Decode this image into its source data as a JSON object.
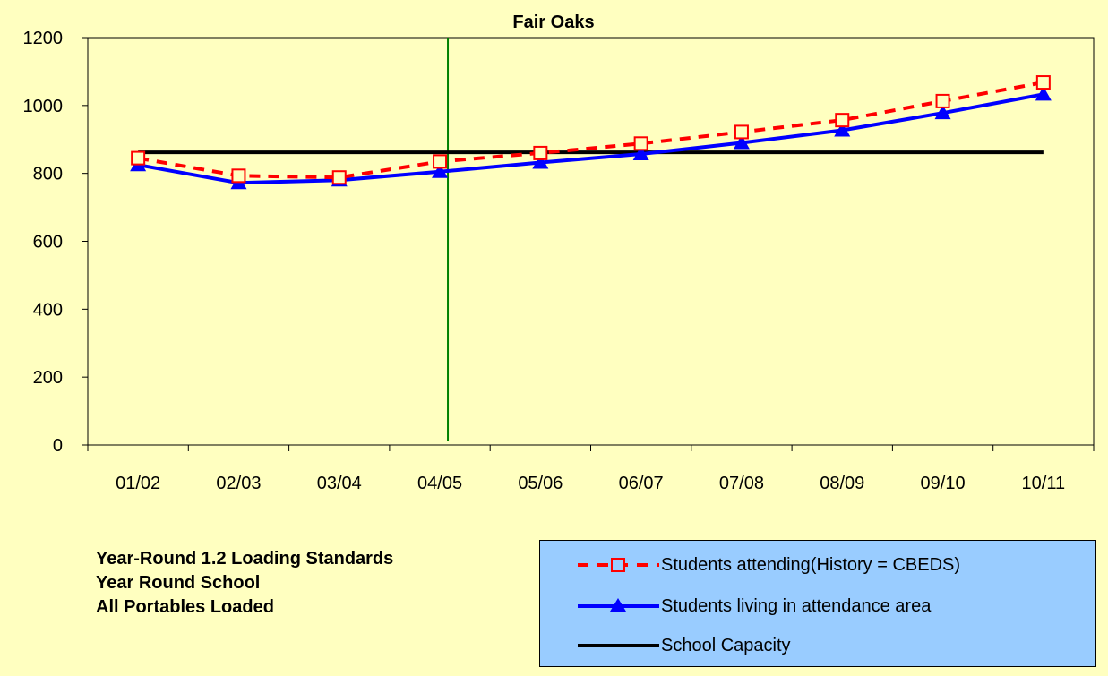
{
  "chart_data": {
    "type": "line",
    "title": "Fair Oaks",
    "xlabel": "",
    "ylabel": "",
    "categories": [
      "01/02",
      "02/03",
      "03/04",
      "04/05",
      "05/06",
      "06/07",
      "07/08",
      "08/09",
      "09/10",
      "10/11"
    ],
    "ylim": [
      0,
      1200
    ],
    "yticks": [
      0,
      200,
      400,
      600,
      800,
      1000,
      1200
    ],
    "divider_after_category": "04/05",
    "series": [
      {
        "name": "Students attending(History = CBEDS)",
        "values": [
          845,
          793,
          788,
          835,
          860,
          888,
          922,
          957,
          1013,
          1068
        ],
        "color": "#ff0000",
        "style": "dashed",
        "marker": "open-square"
      },
      {
        "name": "Students living in attendance area",
        "values": [
          825,
          772,
          780,
          805,
          832,
          857,
          890,
          927,
          978,
          1033
        ],
        "color": "#0000ff",
        "style": "solid",
        "marker": "filled-triangle"
      },
      {
        "name": "School Capacity",
        "values": [
          862,
          862,
          862,
          862,
          862,
          862,
          862,
          862,
          862,
          862
        ],
        "color": "#000000",
        "style": "solid",
        "marker": "none"
      }
    ],
    "grid": false,
    "legend_position": "bottom-right"
  },
  "notes": [
    "Year-Round 1.2 Loading Standards",
    "Year Round School",
    "All Portables Loaded"
  ],
  "colors": {
    "background": "#ffffc0",
    "legend_background": "#99ccff",
    "divider": "#008000"
  }
}
